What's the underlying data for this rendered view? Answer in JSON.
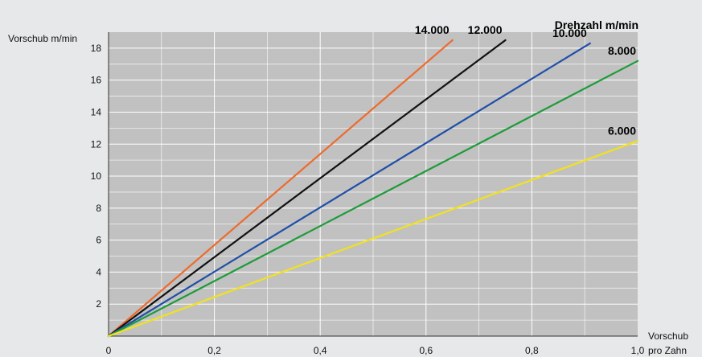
{
  "chart_data": {
    "type": "line",
    "legend_title": "Drehzahl m/min",
    "ylabel": "Vorschub m/min",
    "xlabel_line1": "Vorschub",
    "xlabel_line2": "pro Zahn",
    "xlim": [
      0,
      1.0
    ],
    "ylim": [
      0,
      19
    ],
    "x_ticks": [
      "0",
      "0,2",
      "0,4",
      "0,6",
      "0,8",
      "1,0"
    ],
    "x_tick_values": [
      0,
      0.2,
      0.4,
      0.6,
      0.8,
      1.0
    ],
    "y_ticks": [
      "2",
      "4",
      "6",
      "8",
      "10",
      "12",
      "14",
      "16",
      "18"
    ],
    "y_tick_values": [
      2,
      4,
      6,
      8,
      10,
      12,
      14,
      16,
      18
    ],
    "grid": true,
    "series": [
      {
        "name": "14.000",
        "color": "#ee6a2c",
        "x": [
          0,
          0.65
        ],
        "y": [
          0,
          18.5
        ]
      },
      {
        "name": "12.000",
        "color": "#111111",
        "x": [
          0,
          0.75
        ],
        "y": [
          0,
          18.5
        ]
      },
      {
        "name": "10.000",
        "color": "#1f4fa8",
        "x": [
          0,
          0.91
        ],
        "y": [
          0,
          18.3
        ]
      },
      {
        "name": "8.000",
        "color": "#1e9b3a",
        "x": [
          0,
          1.0
        ],
        "y": [
          0,
          17.2
        ]
      },
      {
        "name": "6.000",
        "color": "#f2e21c",
        "x": [
          0,
          1.0
        ],
        "y": [
          0,
          12.2
        ]
      }
    ]
  }
}
